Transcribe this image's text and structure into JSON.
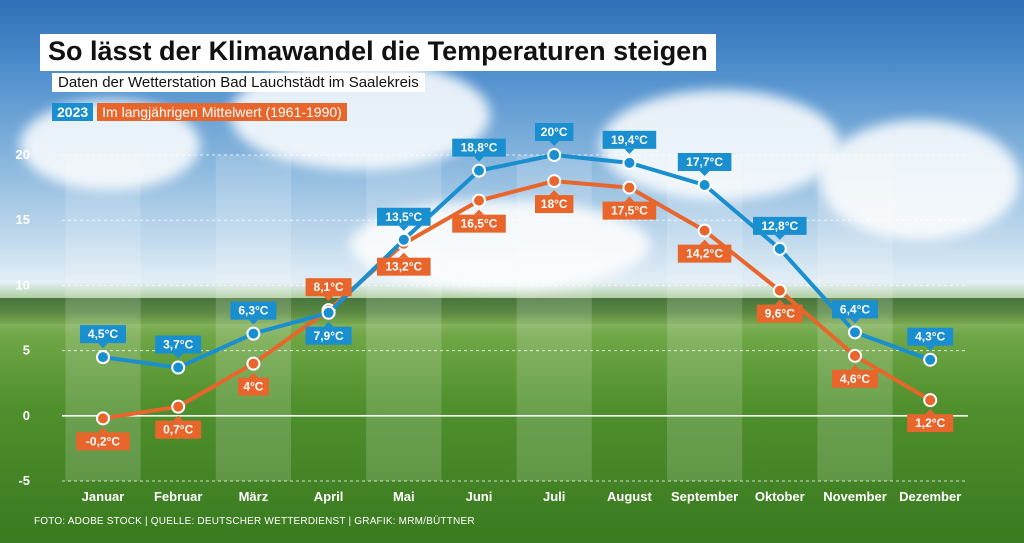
{
  "title": "So lässt der Klimawandel die Temperaturen steigen",
  "subtitle": "Daten der Wetterstation Bad Lauchstädt im Saalekreis",
  "footer": "FOTO: ADOBE STOCK | QUELLE: DEUTSCHER WETTERDIENST | GRAFIK: MRM/BÜTTNER",
  "colors": {
    "series_2023": "#1a8fcf",
    "series_avg": "#e8662c",
    "axis_text": "#ffffff"
  },
  "chart_data": {
    "type": "line",
    "title": "So lässt der Klimawandel die Temperaturen steigen",
    "ylim": [
      -5,
      20
    ],
    "yticks": [
      "-5",
      "0",
      "5",
      "10",
      "15",
      "20"
    ],
    "categories": [
      "Januar",
      "Februar",
      "März",
      "April",
      "Mai",
      "Juni",
      "Juli",
      "August",
      "September",
      "Oktober",
      "November",
      "Dezember"
    ],
    "series": [
      {
        "name": "2023",
        "values": [
          4.5,
          3.7,
          6.3,
          7.9,
          13.5,
          18.8,
          20,
          19.4,
          17.7,
          12.8,
          6.4,
          4.3
        ],
        "labels": [
          "4,5°C",
          "3,7°C",
          "6,3°C",
          "7,9°C",
          "13,5°C",
          "18,8°C",
          "20°C",
          "19,4°C",
          "17,7°C",
          "12,8°C",
          "6,4°C",
          "4,3°C"
        ]
      },
      {
        "name": "Im langjährigen Mittelwert (1961-1990)",
        "values": [
          -0.2,
          0.7,
          4,
          8.1,
          13.2,
          16.5,
          18,
          17.5,
          14.2,
          9.6,
          4.6,
          1.2
        ],
        "labels": [
          "-0,2°C",
          "0,7°C",
          "4°C",
          "8,1°C",
          "13,2°C",
          "16,5°C",
          "18°C",
          "17,5°C",
          "14,2°C",
          "9,6°C",
          "4,6°C",
          "1,2°C"
        ]
      }
    ]
  }
}
